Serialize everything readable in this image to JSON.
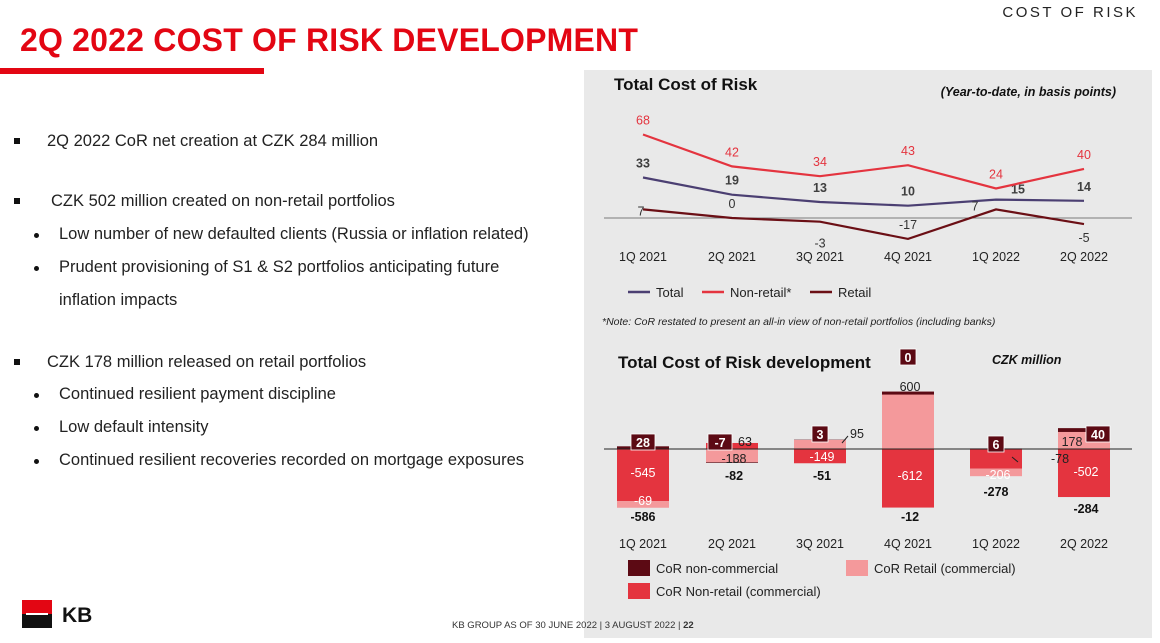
{
  "header": {
    "section_label": "COST OF RISK",
    "title": "2Q 2022 COST OF RISK DEVELOPMENT"
  },
  "bullets": {
    "b1": "2Q 2022 CoR net creation at CZK 284 million",
    "b2": "CZK 502 million created on non-retail portfolios",
    "b2_1": "Low number of new defaulted clients (Russia or inflation related)",
    "b2_2a": "Prudent provisioning of S1 & S2 portfolios anticipating future",
    "b2_2b": "inflation impacts",
    "b3": "CZK 178 million released on retail portfolios",
    "b3_1": "Continued resilient payment discipline",
    "b3_2": "Low default intensity",
    "b3_3": "Continued resilient recoveries recorded on mortgage exposures"
  },
  "chart_data": [
    {
      "type": "line",
      "title": "Total Cost of Risk",
      "subtitle": "(Year-to-date, in basis points)",
      "categories": [
        "1Q 2021",
        "2Q 2021",
        "3Q 2021",
        "4Q 2021",
        "1Q 2022",
        "2Q 2022"
      ],
      "series": [
        {
          "name": "Total",
          "values": [
            33,
            19,
            13,
            10,
            15,
            14
          ],
          "color": "#4b3f72"
        },
        {
          "name": "Non-retail*",
          "values": [
            68,
            42,
            34,
            43,
            24,
            40
          ],
          "color": "#e4343f"
        },
        {
          "name": "Retail",
          "values": [
            7,
            0,
            -3,
            -17,
            7,
            -5
          ],
          "color": "#6b0f15"
        }
      ],
      "note": "*Note: CoR restated to present an all-in view of non-retail portfolios (including banks)",
      "legend": "bottom",
      "ylim": [
        -20,
        70
      ]
    },
    {
      "type": "bar",
      "title": "Total Cost of Risk development",
      "subtitle": "CZK million",
      "categories": [
        "1Q 2021",
        "2Q 2021",
        "3Q 2021",
        "4Q 2021",
        "1Q 2022",
        "2Q 2022"
      ],
      "series": [
        {
          "name": "CoR non-commercial",
          "values": [
            28,
            -7,
            3,
            0,
            6,
            40
          ],
          "color": "#5c0a14"
        },
        {
          "name": "CoR Non-retail (commercial)",
          "values": [
            -545,
            63,
            -149,
            -612,
            -206,
            -502
          ],
          "color": "#e4343f"
        },
        {
          "name": "CoR Retail (commercial)",
          "values": [
            -69,
            -138,
            95,
            600,
            -78,
            178
          ],
          "color": "#f4999b"
        }
      ],
      "totals": [
        -586,
        -82,
        -51,
        -12,
        -278,
        -284
      ],
      "legend": "bottom"
    }
  ],
  "footer": {
    "logo_text": "KB",
    "text_a": "KB GROUP AS OF 30 JUNE 2022",
    "text_b": "3 AUGUST 2022",
    "page": "22"
  }
}
